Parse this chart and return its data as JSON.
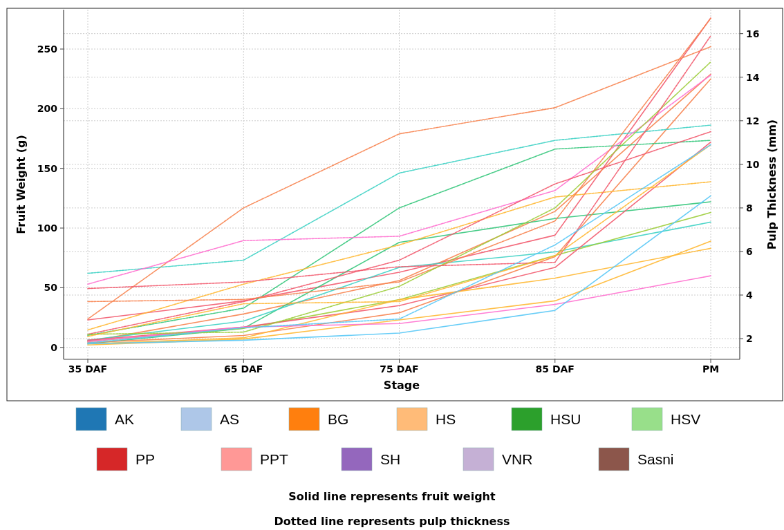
{
  "chart_data": [
    {
      "type": "line",
      "xlabel": "Stage",
      "ylabel": "Fruit Weight (g)",
      "y2label": "Pulp Thickness (mm)",
      "categories": [
        "35 DAF",
        "65 DAF",
        "75 DAF",
        "85 DAF",
        "PM"
      ],
      "ylim": [
        -10,
        283
      ],
      "yticks": [
        0,
        50,
        100,
        150,
        200,
        250
      ],
      "y2lim": [
        1.05,
        17.1
      ],
      "y2ticks": [
        2,
        4,
        6,
        8,
        10,
        12,
        14,
        16
      ],
      "grid": true,
      "annotations": [
        "Solid line represents fruit weight",
        "Dotted line represents pulp thickness"
      ],
      "series": [
        {
          "color": "#f25a6e",
          "line_style": "solid",
          "axis": "y",
          "values": [
            23,
            39,
            63,
            94,
            276
          ]
        },
        {
          "color": "#f7834f",
          "line_style": "solid",
          "axis": "y",
          "values": [
            5,
            28,
            56,
            114,
            229
          ]
        },
        {
          "color": "#34c77b",
          "line_style": "solid",
          "axis": "y",
          "values": [
            3,
            16,
            88,
            108,
            122
          ]
        },
        {
          "color": "#3dd1c4",
          "line_style": "solid",
          "axis": "y",
          "values": [
            6,
            22,
            67,
            80,
            105
          ]
        },
        {
          "color": "#9ccd3a",
          "line_style": "solid",
          "axis": "y",
          "values": [
            5,
            16,
            40,
            77,
            113
          ]
        },
        {
          "color": "#f7834f",
          "line_style": "solid",
          "axis": "y",
          "values": [
            4,
            10,
            29,
            76,
            225
          ]
        },
        {
          "color": "#f25a6e",
          "line_style": "solid",
          "axis": "y",
          "values": [
            6,
            17,
            35,
            67,
            172
          ]
        },
        {
          "color": "#ffb833",
          "line_style": "solid",
          "axis": "y",
          "values": [
            3,
            8,
            40,
            58,
            83
          ]
        },
        {
          "color": "#ffb833",
          "line_style": "solid",
          "axis": "y",
          "values": [
            2,
            7,
            23,
            39,
            89
          ]
        },
        {
          "color": "#ff6fcf",
          "line_style": "solid",
          "axis": "y",
          "values": [
            5,
            17,
            20,
            36,
            60
          ]
        },
        {
          "color": "#58c8f6",
          "line_style": "solid",
          "axis": "y",
          "values": [
            3,
            6,
            12,
            31,
            127
          ]
        },
        {
          "color": "#f7834f",
          "line_style": "dashed",
          "axis": "y2",
          "values": [
            2.9,
            8.0,
            11.4,
            12.6,
            15.4
          ]
        },
        {
          "color": "#3dd1c4",
          "line_style": "dashed",
          "axis": "y2",
          "values": [
            5.0,
            5.6,
            9.6,
            11.1,
            11.8
          ]
        },
        {
          "color": "#34c77b",
          "line_style": "dashed",
          "axis": "y2",
          "values": [
            2.15,
            3.4,
            8.0,
            10.7,
            11.1
          ]
        },
        {
          "color": "#ff6fcf",
          "line_style": "dashed",
          "axis": "y2",
          "values": [
            4.5,
            6.5,
            6.7,
            8.8,
            14.1
          ]
        },
        {
          "color": "#ffb833",
          "line_style": "dashed",
          "axis": "y2",
          "values": [
            2.4,
            4.5,
            6.3,
            8.5,
            9.2
          ]
        },
        {
          "color": "#f25a6e",
          "line_style": "dashed",
          "axis": "y2",
          "values": [
            2.2,
            3.7,
            5.6,
            9.1,
            11.5
          ]
        },
        {
          "color": "#f7834f",
          "line_style": "dashed",
          "axis": "y2",
          "values": [
            3.7,
            3.8,
            4.6,
            7.4,
            16.7
          ]
        },
        {
          "color": "#9ccd3a",
          "line_style": "dashed",
          "axis": "y2",
          "values": [
            2.2,
            2.3,
            4.4,
            8.0,
            14.7
          ]
        },
        {
          "color": "#f25a6e",
          "line_style": "dashed",
          "axis": "y2",
          "values": [
            4.3,
            4.6,
            5.3,
            5.5,
            15.9
          ]
        },
        {
          "color": "#ffb833",
          "line_style": "dashed",
          "axis": "y2",
          "values": [
            2.1,
            3.6,
            3.7,
            5.8,
            10.9
          ]
        },
        {
          "color": "#58c8f6",
          "line_style": "dashed",
          "axis": "y2",
          "values": [
            1.8,
            2.5,
            2.9,
            6.3,
            10.9
          ]
        }
      ]
    },
    {
      "type": "other",
      "categories": [
        "AK",
        "AS",
        "BG",
        "HS",
        "HSU",
        "HSV",
        "PP",
        "PPT",
        "SH",
        "VNR",
        "Sasni"
      ],
      "colors": [
        "#1f77b4",
        "#aec7e8",
        "#ff7f0e",
        "#ffbb78",
        "#2ca02c",
        "#98df8a",
        "#d62728",
        "#ff9896",
        "#9467bd",
        "#c5b0d5",
        "#8c564b"
      ]
    }
  ]
}
